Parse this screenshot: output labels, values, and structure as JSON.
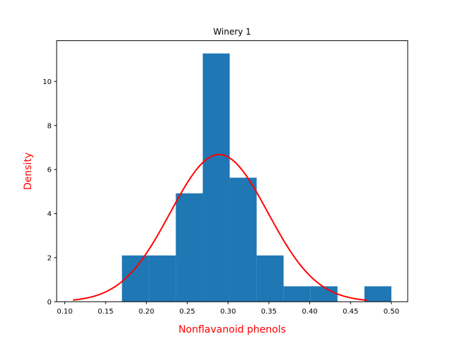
{
  "chart_data": {
    "type": "bar",
    "title": "Winery 1",
    "xlabel": "Nonflavanoid phenols",
    "ylabel": "Density",
    "xlim": [
      0.09,
      0.52
    ],
    "ylim": [
      0,
      11.85
    ],
    "xticks": [
      0.1,
      0.15,
      0.2,
      0.25,
      0.3,
      0.35,
      0.4,
      0.45,
      0.5
    ],
    "xtick_labels": [
      "0.10",
      "0.15",
      "0.20",
      "0.25",
      "0.30",
      "0.35",
      "0.40",
      "0.45",
      "0.50"
    ],
    "yticks": [
      0,
      2,
      4,
      6,
      8,
      10
    ],
    "ytick_labels": [
      "0",
      "2",
      "4",
      "6",
      "8",
      "10"
    ],
    "grid": false,
    "bar_color": "#1f77b4",
    "label_color": "#ff0000",
    "curve_color": "#ff0000",
    "histogram": [
      {
        "x0": 0.17,
        "x1": 0.203,
        "density": 2.1
      },
      {
        "x0": 0.203,
        "x1": 0.236,
        "density": 2.1
      },
      {
        "x0": 0.236,
        "x1": 0.269,
        "density": 4.92
      },
      {
        "x0": 0.269,
        "x1": 0.302,
        "density": 11.27
      },
      {
        "x0": 0.302,
        "x1": 0.335,
        "density": 5.63
      },
      {
        "x0": 0.335,
        "x1": 0.368,
        "density": 2.1
      },
      {
        "x0": 0.368,
        "x1": 0.401,
        "density": 0.7
      },
      {
        "x0": 0.401,
        "x1": 0.434,
        "density": 0.7
      },
      {
        "x0": 0.434,
        "x1": 0.467,
        "density": 0
      },
      {
        "x0": 0.467,
        "x1": 0.5,
        "density": 0.7
      }
    ],
    "normal_curve": {
      "mean": 0.289,
      "std": 0.0597,
      "x_range": [
        0.11,
        0.47
      ]
    }
  }
}
